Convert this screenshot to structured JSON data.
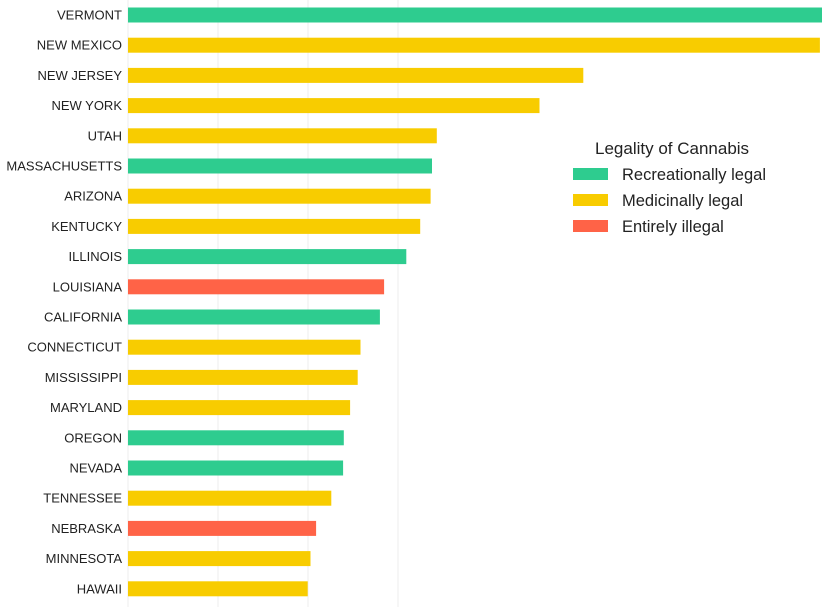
{
  "chart_data": {
    "type": "bar",
    "orientation": "horizontal",
    "categories": [
      "VERMONT",
      "NEW MEXICO",
      "NEW JERSEY",
      "NEW YORK",
      "UTAH",
      "MASSACHUSETTS",
      "ARIZONA",
      "KENTUCKY",
      "ILLINOIS",
      "LOUISIANA",
      "CALIFORNIA",
      "CONNECTICUT",
      "MISSISSIPPI",
      "MARYLAND",
      "OREGON",
      "NEVADA",
      "TENNESSEE",
      "NEBRASKA",
      "MINNESOTA",
      "HAWAII"
    ],
    "values": [
      100,
      99.7,
      65.6,
      59.3,
      44.5,
      43.8,
      43.6,
      42.1,
      40.1,
      36.9,
      36.3,
      33.5,
      33.1,
      32.0,
      31.1,
      31.0,
      29.3,
      27.1,
      26.3,
      25.9
    ],
    "legality": [
      "Recreationally legal",
      "Medicinally legal",
      "Medicinally legal",
      "Medicinally legal",
      "Medicinally legal",
      "Recreationally legal",
      "Medicinally legal",
      "Medicinally legal",
      "Recreationally legal",
      "Entirely illegal",
      "Recreationally legal",
      "Medicinally legal",
      "Medicinally legal",
      "Medicinally legal",
      "Recreationally legal",
      "Recreationally legal",
      "Medicinally legal",
      "Entirely illegal",
      "Medicinally legal",
      "Medicinally legal"
    ],
    "xlim": [
      0,
      100
    ],
    "grid": true,
    "legend": {
      "title": "Legality of Cannabis",
      "position": "right",
      "entries": [
        {
          "label": "Recreationally legal",
          "color": "#2ecc8f"
        },
        {
          "label": "Medicinally legal",
          "color": "#f8cc00"
        },
        {
          "label": "Entirely illegal",
          "color": "#ff6347"
        }
      ]
    }
  }
}
